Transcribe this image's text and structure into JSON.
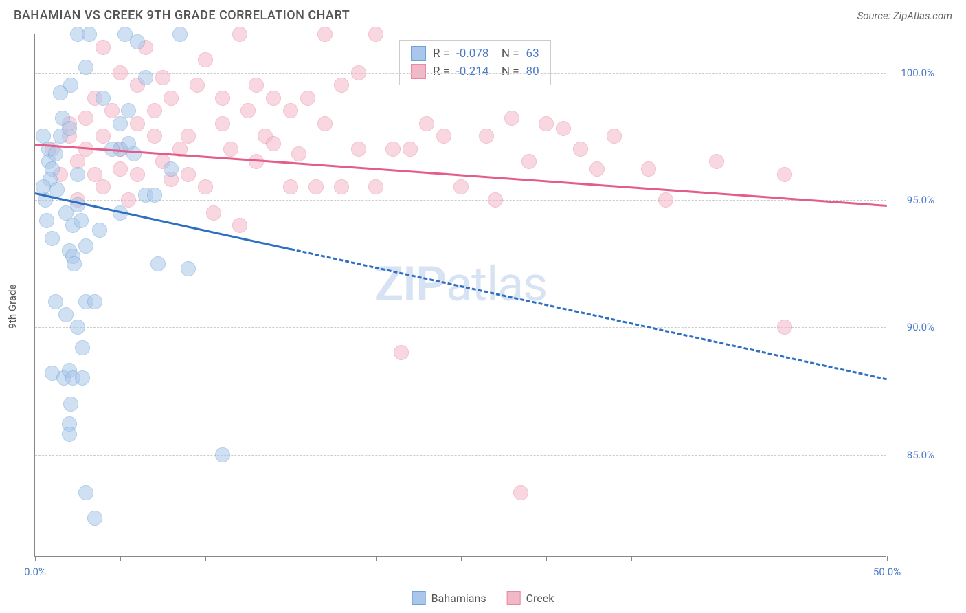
{
  "header": {
    "title": "BAHAMIAN VS CREEK 9TH GRADE CORRELATION CHART",
    "source": "Source: ZipAtlas.com"
  },
  "chart": {
    "type": "scatter",
    "ylabel": "9th Grade",
    "watermark_bold": "ZIP",
    "watermark_rest": "atlas",
    "xlim": [
      0,
      50
    ],
    "ylim": [
      81,
      101.5
    ],
    "xticks": [
      0,
      5,
      10,
      15,
      20,
      25,
      30,
      35,
      40,
      45,
      50
    ],
    "xtick_labels": {
      "0": "0.0%",
      "50": "50.0%"
    },
    "yticks": [
      85,
      90,
      95,
      100
    ],
    "ytick_labels": {
      "85": "85.0%",
      "90": "90.0%",
      "95": "95.0%",
      "100": "100.0%"
    },
    "background_color": "#ffffff",
    "grid_color": "#cccccc",
    "axis_color": "#888888",
    "tick_label_color": "#4a7bc8",
    "series": {
      "bahamians": {
        "label": "Bahamians",
        "fill": "#a9c7ea",
        "stroke": "#6fa3d8",
        "line_color": "#2e6fc0",
        "R": "-0.078",
        "N": "63",
        "trend_y_at_x0": 95.3,
        "trend_y_at_x50": 88.0,
        "solid_until_x": 15,
        "points": [
          [
            2.5,
            101.5
          ],
          [
            3.2,
            101.5
          ],
          [
            5.3,
            101.5
          ],
          [
            6.0,
            101.2
          ],
          [
            8.5,
            101.5
          ],
          [
            0.8,
            96.5
          ],
          [
            1.0,
            96.2
          ],
          [
            0.9,
            95.8
          ],
          [
            1.3,
            95.4
          ],
          [
            0.6,
            95.0
          ],
          [
            1.5,
            99.2
          ],
          [
            2.1,
            99.5
          ],
          [
            3.0,
            100.2
          ],
          [
            4.0,
            99.0
          ],
          [
            5.0,
            97.0
          ],
          [
            5.5,
            97.2
          ],
          [
            5.8,
            96.8
          ],
          [
            8.0,
            96.2
          ],
          [
            1.8,
            94.5
          ],
          [
            2.5,
            94.8
          ],
          [
            2.0,
            93.0
          ],
          [
            3.0,
            93.2
          ],
          [
            5.0,
            94.5
          ],
          [
            6.5,
            95.2
          ],
          [
            1.2,
            91.0
          ],
          [
            2.2,
            92.8
          ],
          [
            2.3,
            92.5
          ],
          [
            3.0,
            91.0
          ],
          [
            3.5,
            91.0
          ],
          [
            7.2,
            92.5
          ],
          [
            9.0,
            92.3
          ],
          [
            2.8,
            89.2
          ],
          [
            2.5,
            90.0
          ],
          [
            1.0,
            88.2
          ],
          [
            1.7,
            88.0
          ],
          [
            2.0,
            88.3
          ],
          [
            2.2,
            88.0
          ],
          [
            2.8,
            88.0
          ],
          [
            2.1,
            87.0
          ],
          [
            2.0,
            86.2
          ],
          [
            2.0,
            85.8
          ],
          [
            3.0,
            83.5
          ],
          [
            11.0,
            85.0
          ],
          [
            3.5,
            82.5
          ],
          [
            1.6,
            98.2
          ],
          [
            0.5,
            97.5
          ],
          [
            0.8,
            97.0
          ],
          [
            1.2,
            96.8
          ],
          [
            1.5,
            97.5
          ],
          [
            2.0,
            97.8
          ],
          [
            4.5,
            97.0
          ],
          [
            5.0,
            98.0
          ],
          [
            5.5,
            98.5
          ],
          [
            6.5,
            99.8
          ],
          [
            7.0,
            95.2
          ],
          [
            1.0,
            93.5
          ],
          [
            2.2,
            94.0
          ],
          [
            2.7,
            94.2
          ],
          [
            3.8,
            93.8
          ],
          [
            1.8,
            90.5
          ],
          [
            0.7,
            94.2
          ],
          [
            0.5,
            95.5
          ],
          [
            2.5,
            96.0
          ]
        ]
      },
      "creek": {
        "label": "Creek",
        "fill": "#f3b8c8",
        "stroke": "#e88ba5",
        "line_color": "#e45c8a",
        "R": "-0.214",
        "N": "80",
        "trend_y_at_x0": 97.2,
        "trend_y_at_x50": 94.8,
        "solid_until_x": 50,
        "points": [
          [
            3.0,
            97.0
          ],
          [
            4.0,
            97.5
          ],
          [
            5.0,
            97.0
          ],
          [
            6.0,
            98.0
          ],
          [
            7.0,
            98.5
          ],
          [
            8.0,
            99.0
          ],
          [
            9.0,
            97.5
          ],
          [
            10.0,
            100.5
          ],
          [
            11.0,
            98.0
          ],
          [
            12.0,
            101.5
          ],
          [
            13.0,
            99.5
          ],
          [
            14.0,
            99.0
          ],
          [
            15.0,
            98.5
          ],
          [
            16.0,
            99.0
          ],
          [
            17.0,
            101.5
          ],
          [
            18.0,
            99.5
          ],
          [
            19.0,
            100.0
          ],
          [
            20.0,
            101.5
          ],
          [
            21.0,
            97.0
          ],
          [
            7.5,
            96.5
          ],
          [
            9.0,
            96.0
          ],
          [
            10.0,
            95.5
          ],
          [
            11.5,
            97.0
          ],
          [
            13.0,
            96.5
          ],
          [
            13.5,
            97.5
          ],
          [
            15.0,
            95.5
          ],
          [
            16.5,
            95.5
          ],
          [
            17.0,
            98.0
          ],
          [
            18.0,
            95.5
          ],
          [
            20.0,
            95.5
          ],
          [
            22.0,
            97.0
          ],
          [
            23.0,
            98.0
          ],
          [
            25.0,
            95.5
          ],
          [
            26.5,
            97.5
          ],
          [
            28.0,
            98.2
          ],
          [
            30.0,
            98.0
          ],
          [
            32.0,
            97.0
          ],
          [
            33.0,
            96.2
          ],
          [
            36.0,
            96.2
          ],
          [
            40.0,
            96.5
          ],
          [
            44.0,
            96.0
          ],
          [
            10.5,
            94.5
          ],
          [
            12.0,
            94.0
          ],
          [
            2.5,
            96.5
          ],
          [
            5.0,
            96.2
          ],
          [
            6.0,
            96.0
          ],
          [
            8.0,
            95.8
          ],
          [
            4.5,
            98.5
          ],
          [
            6.5,
            101.0
          ],
          [
            21.5,
            89.0
          ],
          [
            28.5,
            83.5
          ],
          [
            44.0,
            90.0
          ],
          [
            4.0,
            95.5
          ],
          [
            3.5,
            96.0
          ],
          [
            5.5,
            95.0
          ],
          [
            8.5,
            97.0
          ],
          [
            7.0,
            97.5
          ],
          [
            9.5,
            99.5
          ],
          [
            11.0,
            99.0
          ],
          [
            12.5,
            98.5
          ],
          [
            4.0,
            101.0
          ],
          [
            5.0,
            100.0
          ],
          [
            2.0,
            98.0
          ],
          [
            3.0,
            98.2
          ],
          [
            6.0,
            99.5
          ],
          [
            14.0,
            97.2
          ],
          [
            15.5,
            96.8
          ],
          [
            19.0,
            97.0
          ],
          [
            24.0,
            97.5
          ],
          [
            27.0,
            95.0
          ],
          [
            29.0,
            96.5
          ],
          [
            31.0,
            97.8
          ],
          [
            34.0,
            97.5
          ],
          [
            37.0,
            95.0
          ],
          [
            2.5,
            95.0
          ],
          [
            1.5,
            96.0
          ],
          [
            1.0,
            97.0
          ],
          [
            2.0,
            97.5
          ],
          [
            3.5,
            99.0
          ],
          [
            7.5,
            99.8
          ]
        ]
      }
    },
    "bottom_legend": [
      {
        "label": "Bahamians",
        "fill": "#a9c7ea",
        "stroke": "#6fa3d8"
      },
      {
        "label": "Creek",
        "fill": "#f3b8c8",
        "stroke": "#e88ba5"
      }
    ]
  }
}
